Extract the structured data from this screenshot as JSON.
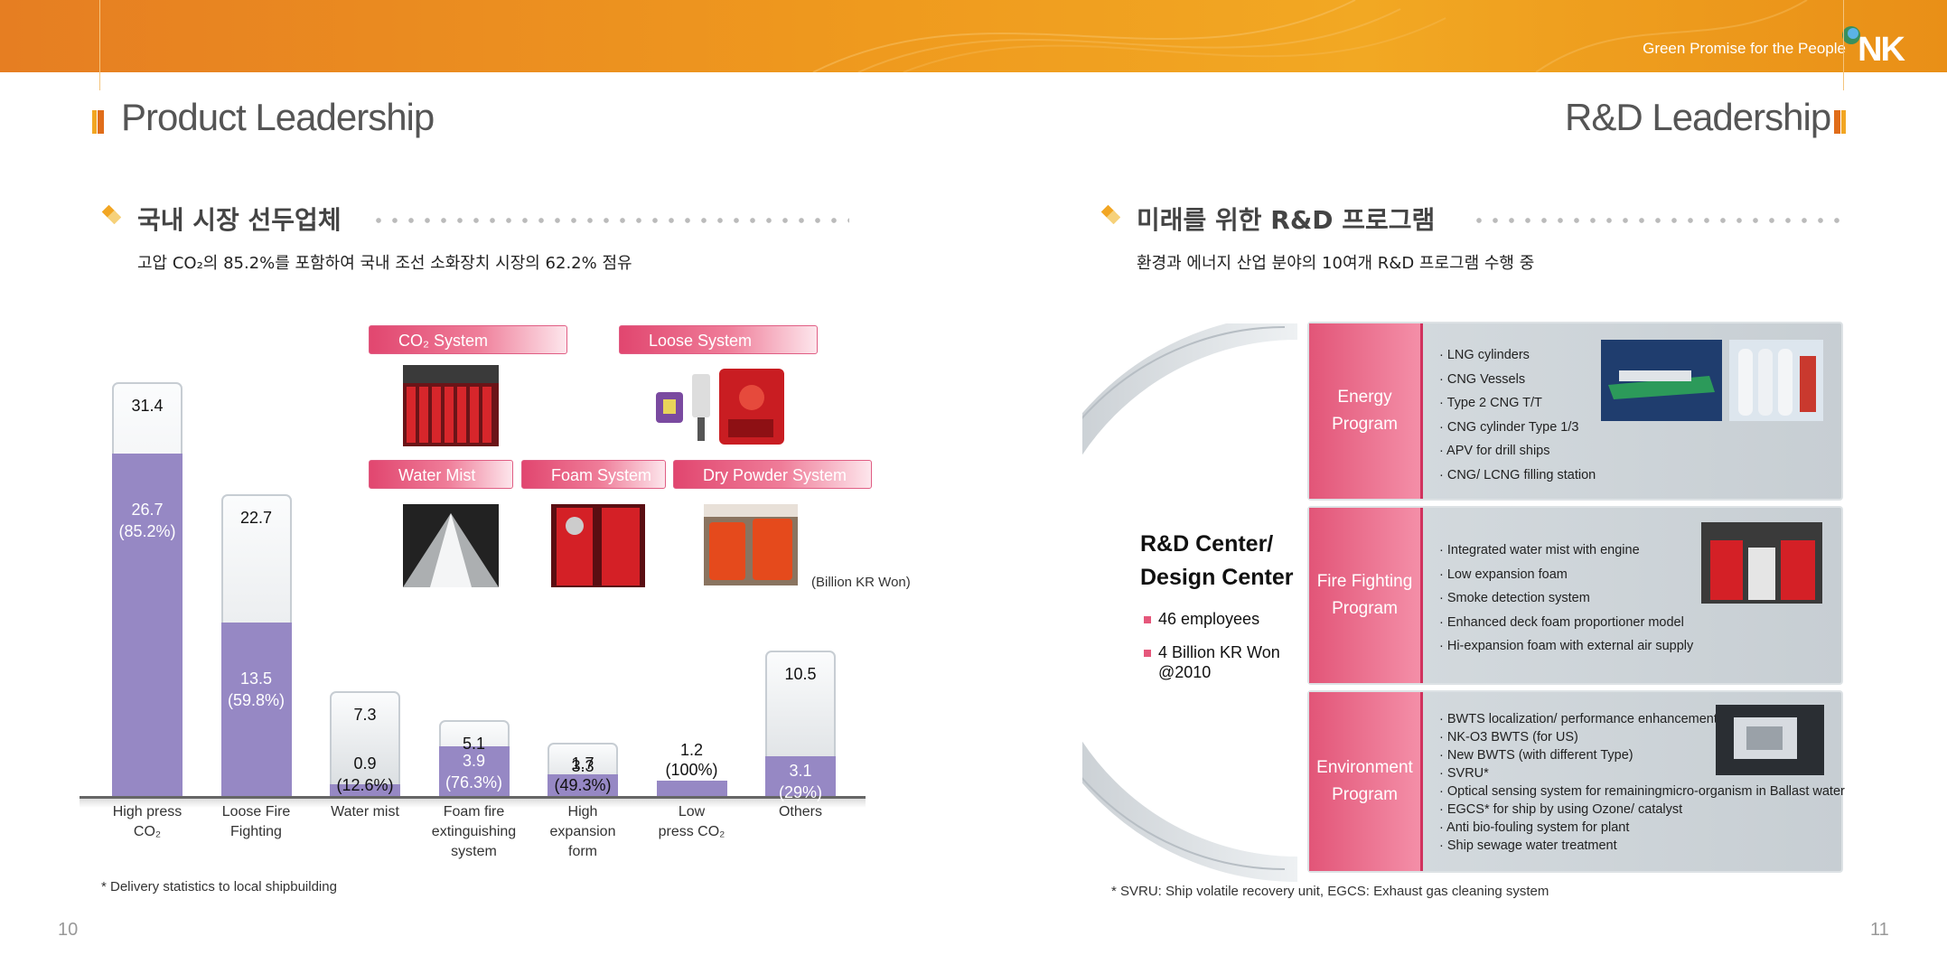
{
  "header": {
    "tagline": "Green Promise for the People",
    "logo_text": "NK"
  },
  "left": {
    "section_title": "Product Leadership",
    "subtitle": "국내 시장 선두업체",
    "description": "고압 CO₂의 85.2%를 포함하여 국내 조선 소화장치 시장의 62.2% 점유",
    "product_labels": [
      "CO₂ System",
      "Loose System",
      "Water Mist",
      "Foam System",
      "Dry Powder System"
    ],
    "unit_note": "(Billion KR Won)",
    "footnote": "* Delivery statistics to local shipbuilding",
    "page_number": "10"
  },
  "chart_data": {
    "type": "bar",
    "categories": [
      "High press CO₂",
      "Loose Fire Fighting",
      "Water mist",
      "Foam fire extinguishing system",
      "High expansion form",
      "Low press CO₂",
      "Others"
    ],
    "series": [
      {
        "values": [
          31.4,
          22.7,
          7.3,
          5.1,
          3.3,
          1.2,
          10.5
        ]
      },
      {
        "values": [
          26.7,
          13.5,
          0.9,
          3.9,
          1.7,
          1.2,
          3.1
        ]
      }
    ],
    "total_labels": [
      "31.4",
      "22.7",
      "7.3",
      "5.1",
      "3.3",
      "1.2",
      "10.5"
    ],
    "share_labels": [
      "26.7",
      "13.5",
      "0.9",
      "3.9",
      "1.7",
      "",
      "3.1"
    ],
    "share_pct_labels": [
      "(85.2%)",
      "(59.8%)",
      "(12.6%)",
      "(76.3%)",
      "(49.3%)",
      "(100%)",
      "(29%)"
    ],
    "x_labels": [
      [
        "High press",
        "CO₂"
      ],
      [
        "Loose Fire",
        "Fighting"
      ],
      [
        "Water mist"
      ],
      [
        "Foam fire",
        "extinguishing",
        "system"
      ],
      [
        "High",
        "expansion",
        "form"
      ],
      [
        "Low",
        "press CO₂"
      ],
      [
        "Others"
      ]
    ],
    "ylim": [
      0,
      34
    ],
    "colors": {
      "share": "#9688c4",
      "total": "#e1e5e8"
    }
  },
  "right": {
    "section_title": "R&D Leadership",
    "subtitle": "미래를 위한 R&D 프로그램",
    "description": "환경과 에너지 산업 분야의 10여개 R&D 프로그램 수행 중",
    "center_title": [
      "R&D Center/",
      "Design Center"
    ],
    "center_items": [
      "46 employees",
      "4 Billion KR Won",
      "@2010"
    ],
    "programs": [
      {
        "name": [
          "Energy",
          "Program"
        ],
        "items": [
          "· LNG cylinders",
          "· CNG Vessels",
          "· Type 2 CNG T/T",
          "· CNG cylinder Type 1/3",
          "· APV for drill ships",
          "· CNG/ LCNG filling station"
        ]
      },
      {
        "name": [
          "Fire Fighting",
          "Program"
        ],
        "items": [
          "· Integrated water mist with engine",
          "· Low expansion foam",
          "· Smoke detection system",
          "· Enhanced deck foam proportioner model",
          "· Hi-expansion foam with external air supply"
        ]
      },
      {
        "name": [
          "Environment",
          "Program"
        ],
        "items": [
          "· BWTS localization/ performance enhancement",
          "· NK-O3 BWTS (for US)",
          "· New BWTS (with different Type)",
          "· SVRU*",
          "· Optical sensing system for remainingmicro-organism in Ballast water",
          "· EGCS* for ship by using Ozone/ catalyst",
          "· Anti bio-fouling system for plant",
          "· Ship sewage water treatment"
        ]
      }
    ],
    "footnote": "* SVRU: Ship volatile recovery unit,  EGCS: Exhaust gas cleaning system",
    "page_number": "11"
  }
}
